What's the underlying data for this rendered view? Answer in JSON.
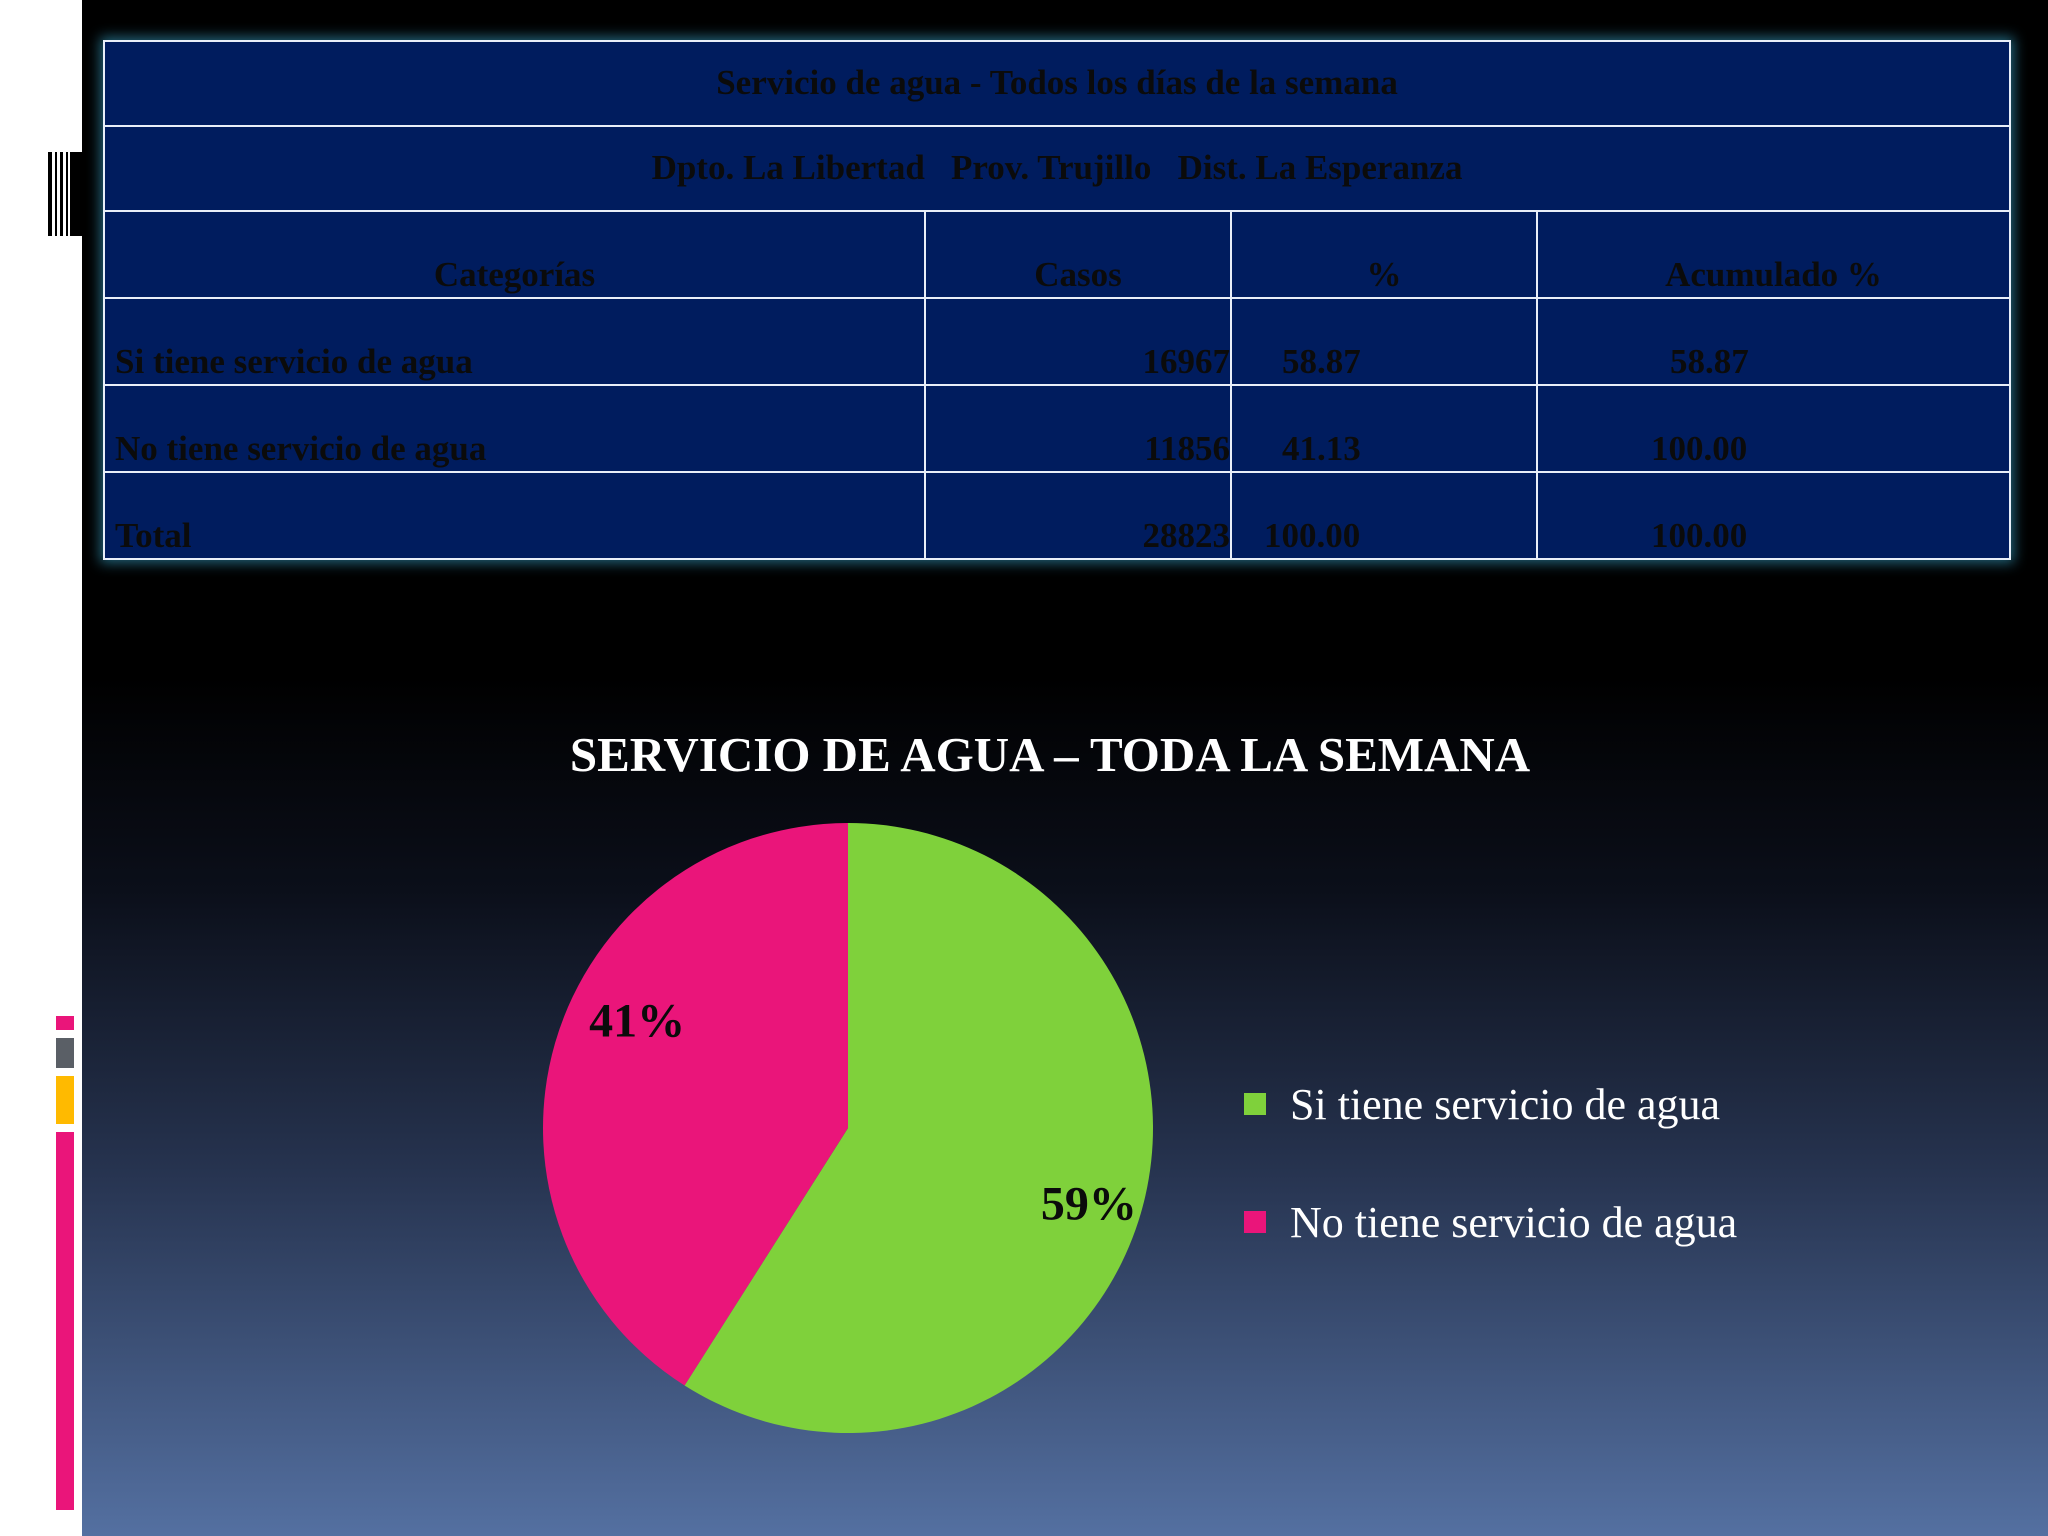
{
  "table": {
    "title": "Servicio de agua - Todos los días de la semana",
    "subtitle": "Dpto. La Libertad   Prov. Trujillo   Dist. La Esperanza",
    "headers": [
      "Categorías",
      "Casos",
      "%",
      "Acumulado %"
    ],
    "rows": [
      [
        "Si tiene servicio de agua",
        "16967",
        "58.87",
        "58.87"
      ],
      [
        "No tiene servicio de agua",
        "11856",
        "41.13",
        "100.00"
      ],
      [
        "Total",
        "28823",
        "100.00",
        "100.00"
      ]
    ]
  },
  "chart_data": {
    "type": "pie",
    "title": "SERVICIO DE AGUA – TODA LA SEMANA",
    "categories": [
      "Si tiene servicio de agua",
      "No tiene servicio de agua"
    ],
    "values": [
      59,
      41
    ],
    "labels": [
      "59%",
      "41%"
    ],
    "colors": [
      "#7fd13b",
      "#ea157a"
    ],
    "legend_position": "right"
  }
}
